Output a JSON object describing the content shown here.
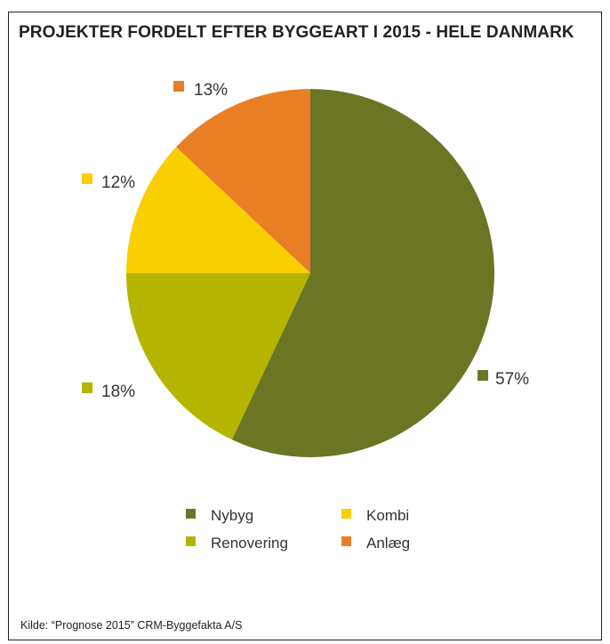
{
  "title": "PROJEKTER FORDELT EFTER BYGGEART I 2015 - HELE DANMARK",
  "source": "Kilde: “Prognose 2015” CRM-Byggefakta A/S",
  "chart_data": {
    "type": "pie",
    "title": "PROJEKTER FORDELT EFTER BYGGEART I 2015 - HELE DANMARK",
    "start_angle_deg": 0,
    "direction": "clockwise",
    "slices": [
      {
        "name": "Nybyg",
        "value": 57,
        "label": "57%",
        "color": "#6b7524"
      },
      {
        "name": "Renovering",
        "value": 18,
        "label": "18%",
        "color": "#b5b500"
      },
      {
        "name": "Kombi",
        "value": 12,
        "label": "12%",
        "color": "#f9cf00"
      },
      {
        "name": "Anlæg",
        "value": 13,
        "label": "13%",
        "color": "#e97f24"
      }
    ],
    "legend": {
      "placement": "bottom",
      "columns": 2,
      "items": [
        {
          "name": "Nybyg",
          "color": "#6b7524"
        },
        {
          "name": "Kombi",
          "color": "#f9cf00"
        },
        {
          "name": "Renovering",
          "color": "#b5b500"
        },
        {
          "name": "Anlæg",
          "color": "#e97f24"
        }
      ]
    }
  }
}
